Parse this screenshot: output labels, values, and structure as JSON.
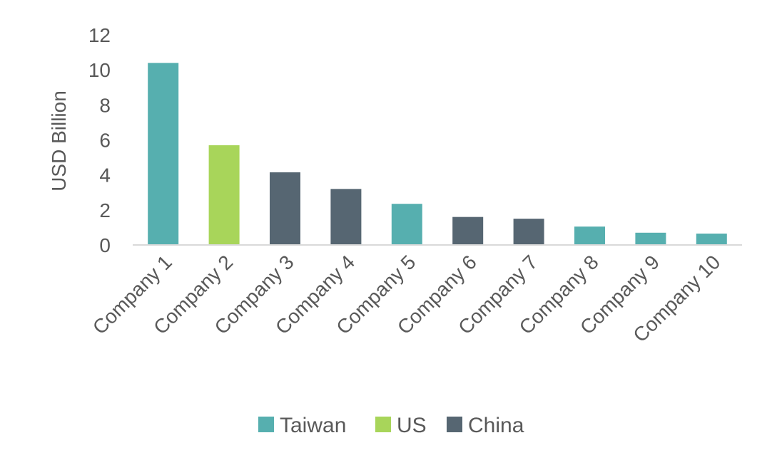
{
  "chart_data": {
    "type": "bar",
    "title": "",
    "xlabel": "",
    "ylabel": "USD Billion",
    "ylim": [
      0,
      12
    ],
    "yticks": [
      0,
      2,
      4,
      6,
      8,
      10,
      12
    ],
    "grid": false,
    "legend_position": "bottom",
    "categories": [
      "Company 1",
      "Company 2",
      "Company 3",
      "Company 4",
      "Company 5",
      "Company 6",
      "Company 7",
      "Company 8",
      "Company 9",
      "Company 10"
    ],
    "values": [
      10.4,
      5.7,
      4.15,
      3.2,
      2.35,
      1.6,
      1.5,
      1.05,
      0.7,
      0.65
    ],
    "groups": [
      "Taiwan",
      "US",
      "China",
      "China",
      "Taiwan",
      "China",
      "China",
      "Taiwan",
      "Taiwan",
      "Taiwan"
    ],
    "legend": [
      {
        "name": "Taiwan",
        "color": "#56AFAF"
      },
      {
        "name": "US",
        "color": "#A8D55A"
      },
      {
        "name": "China",
        "color": "#566672"
      }
    ]
  }
}
